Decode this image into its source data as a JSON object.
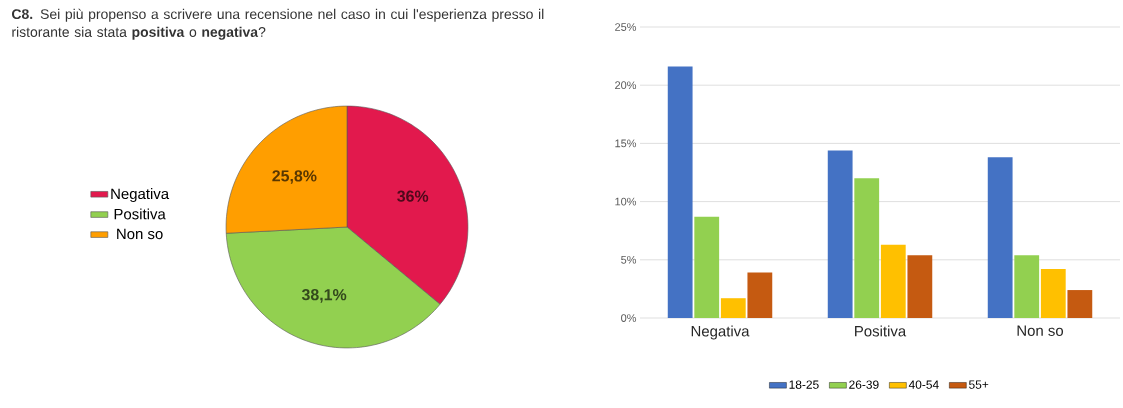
{
  "chart_data": [
    {
      "type": "pie",
      "title": "**C8.** Sei più propenso a scrivere una recensione nel caso in cui l'esperienza presso il ristorante sia stata **positiva** o **negativa**?",
      "categories": [
        "Negativa",
        "Positiva",
        "Non so"
      ],
      "values": [
        36,
        38.1,
        25.8
      ],
      "colors": [
        "#e2194d",
        "#92d050",
        "#ff9e00"
      ],
      "value_labels": [
        "36%",
        "38,1%",
        "25,8%"
      ],
      "legend": "left"
    },
    {
      "type": "bar",
      "categories": [
        "Negativa",
        "Positiva",
        "Non so"
      ],
      "series": [
        {
          "name": "18-25",
          "color": "#4472c4",
          "values": [
            21.6,
            14.4,
            13.8
          ]
        },
        {
          "name": "26-39",
          "color": "#92d050",
          "values": [
            8.7,
            12.0,
            5.4
          ]
        },
        {
          "name": "40-54",
          "color": "#ffc000",
          "values": [
            1.7,
            6.3,
            4.2
          ]
        },
        {
          "name": "55+",
          "color": "#c55a11",
          "values": [
            3.9,
            5.4,
            2.4
          ]
        }
      ],
      "ylim": [
        0,
        25
      ],
      "yticks": [
        {
          "value": 0,
          "label": "0%"
        },
        {
          "value": 5,
          "label": "5%"
        },
        {
          "value": 10,
          "label": "10%"
        },
        {
          "value": 15,
          "label": "15%"
        },
        {
          "value": 20,
          "label": "20%"
        },
        {
          "value": 25,
          "label": "25%"
        }
      ],
      "grid": "y",
      "legend": "bottom"
    }
  ]
}
